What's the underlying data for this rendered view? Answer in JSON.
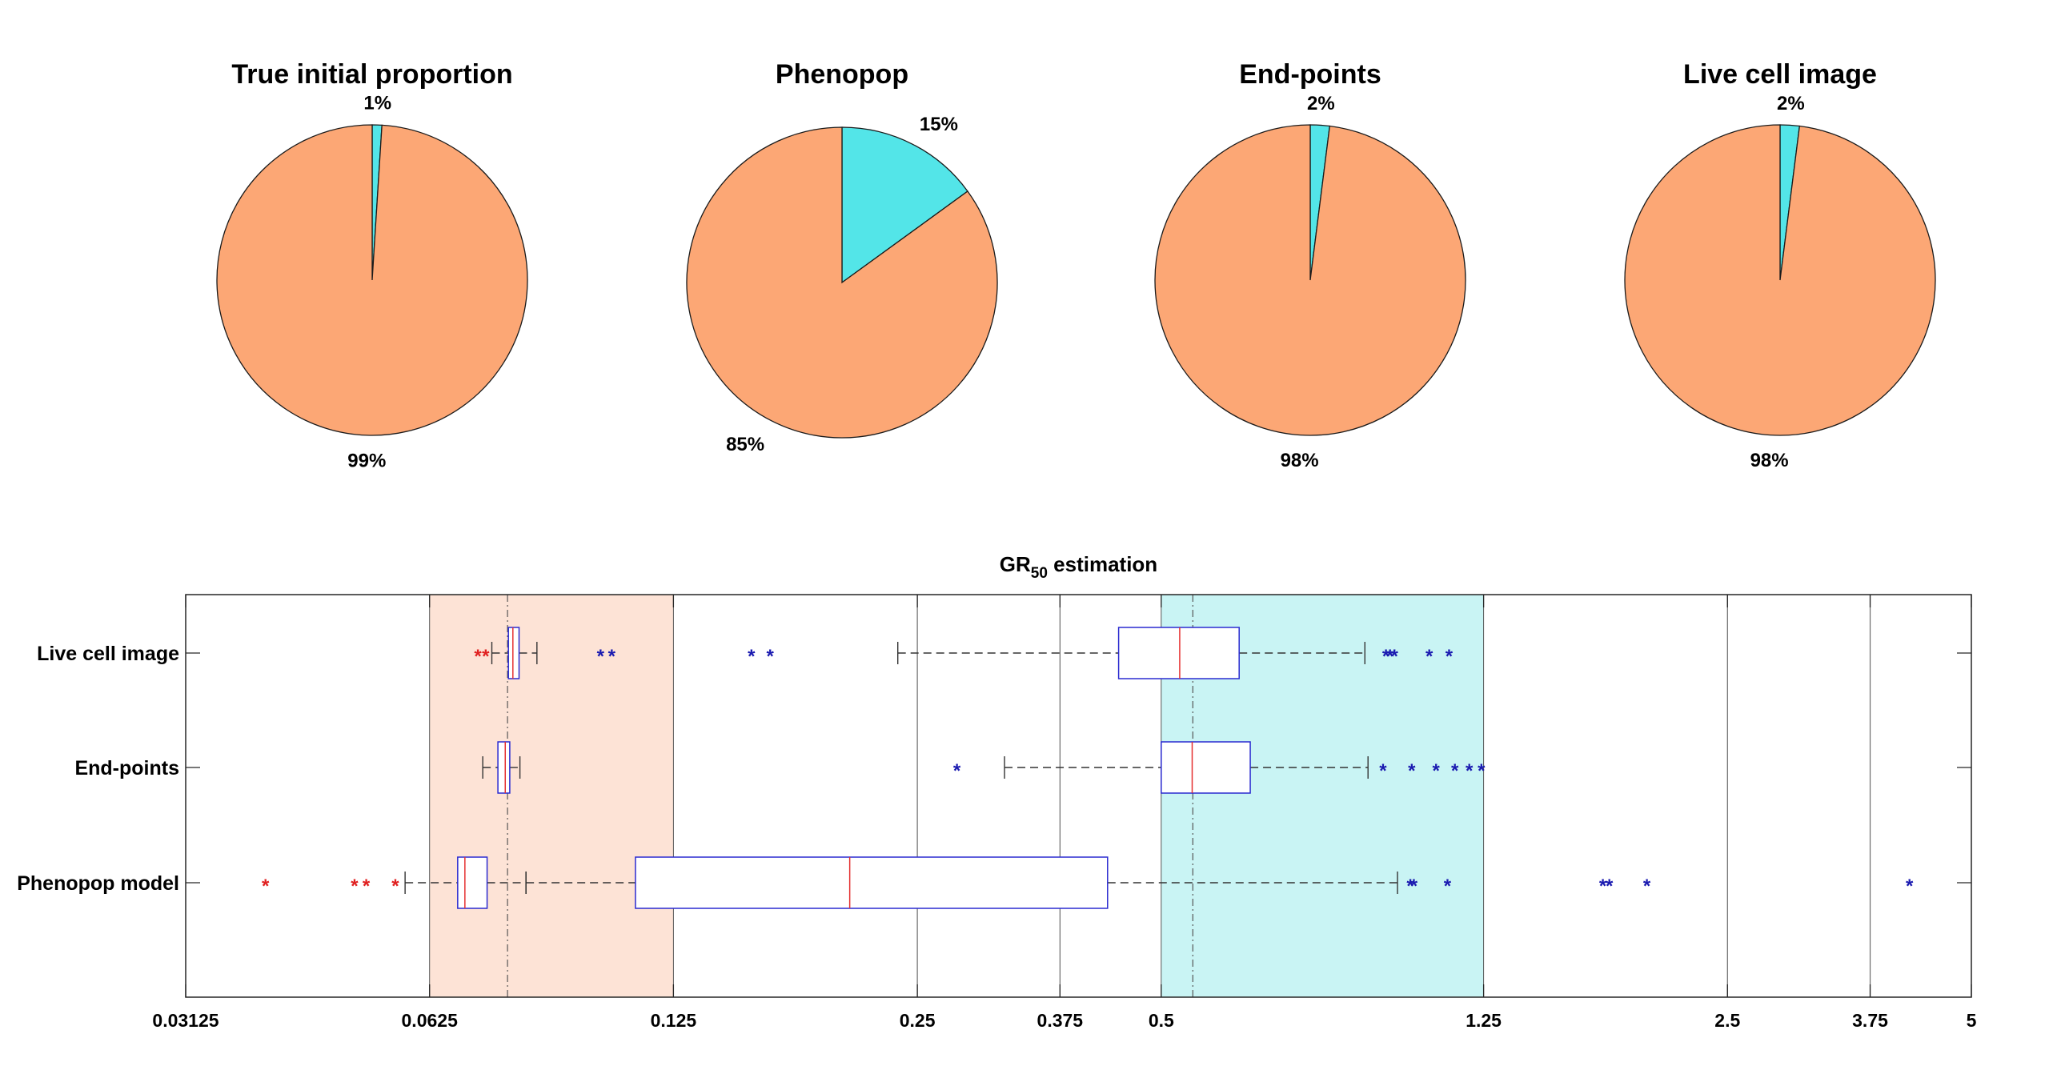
{
  "chart_data": [
    {
      "type": "pie",
      "title": "True initial proportion",
      "slices": [
        {
          "label": "1%",
          "value": 1,
          "color": "#53e5e8"
        },
        {
          "label": "99%",
          "value": 99,
          "color": "#fca775"
        }
      ]
    },
    {
      "type": "pie",
      "title": "Phenopop",
      "slices": [
        {
          "label": "15%",
          "value": 15,
          "color": "#53e5e8"
        },
        {
          "label": "85%",
          "value": 85,
          "color": "#fca775"
        }
      ]
    },
    {
      "type": "pie",
      "title": "End-points",
      "slices": [
        {
          "label": "2%",
          "value": 2,
          "color": "#53e5e8"
        },
        {
          "label": "98%",
          "value": 98,
          "color": "#fca775"
        }
      ]
    },
    {
      "type": "pie",
      "title": "Live cell image",
      "slices": [
        {
          "label": "2%",
          "value": 2,
          "color": "#53e5e8"
        },
        {
          "label": "98%",
          "value": 98,
          "color": "#fca775"
        }
      ]
    },
    {
      "type": "boxplot",
      "orientation": "horizontal",
      "title_main": "GR",
      "title_sub": "50",
      "title_rest": " estimation",
      "xscale": "log",
      "xlim": [
        0.03125,
        5
      ],
      "xticks": [
        0.03125,
        0.0625,
        0.125,
        0.25,
        0.375,
        0.5,
        1.25,
        2.5,
        3.75,
        5
      ],
      "xtick_labels": [
        "0.03125",
        "0.0625",
        "0.125",
        "0.25",
        "0.375",
        "0.5",
        "1.25",
        "2.5",
        "3.75",
        "5"
      ],
      "grid_x": [
        0.25,
        0.375,
        2.5,
        3.75
      ],
      "shaded_regions": [
        {
          "x0": 0.0625,
          "x1": 0.125,
          "color": "#fde3d6"
        },
        {
          "x0": 0.5,
          "x1": 1.25,
          "color": "#c9f4f4"
        }
      ],
      "reference_lines": [
        0.078,
        0.547
      ],
      "categories": [
        "Live cell image",
        "End-points",
        "Phenopop model"
      ],
      "boxes": [
        {
          "category": "Live cell image",
          "groups": [
            {
              "whisker_low": 0.0746,
              "q1": 0.0782,
              "median": 0.0792,
              "q3": 0.0806,
              "whisker_high": 0.0848,
              "outliers": [
                {
                  "x": 0.0717,
                  "color": "#e02020"
                },
                {
                  "x": 0.0733,
                  "color": "#e02020"
                },
                {
                  "x": 0.1016,
                  "color": "#1a1ab0"
                },
                {
                  "x": 0.1049,
                  "color": "#1a1ab0"
                }
              ]
            },
            {
              "whisker_low": 0.2365,
              "q1": 0.443,
              "median": 0.527,
              "q3": 0.624,
              "whisker_high": 0.892,
              "outliers": [
                {
                  "x": 0.156,
                  "color": "#1a1ab0"
                },
                {
                  "x": 0.1645,
                  "color": "#1a1ab0"
                },
                {
                  "x": 0.947,
                  "color": "#1a1ab0"
                },
                {
                  "x": 0.958,
                  "color": "#1a1ab0"
                },
                {
                  "x": 0.97,
                  "color": "#1a1ab0"
                },
                {
                  "x": 1.071,
                  "color": "#1a1ab0"
                },
                {
                  "x": 1.133,
                  "color": "#1a1ab0"
                }
              ]
            }
          ]
        },
        {
          "category": "End-points",
          "groups": [
            {
              "whisker_low": 0.0727,
              "q1": 0.0759,
              "median": 0.0775,
              "q3": 0.0785,
              "whisker_high": 0.0808,
              "outliers": []
            },
            {
              "whisker_low": 0.3203,
              "q1": 0.5,
              "median": 0.546,
              "q3": 0.644,
              "whisker_high": 0.9,
              "outliers": [
                {
                  "x": 0.2798,
                  "color": "#1a1ab0"
                },
                {
                  "x": 0.9392,
                  "color": "#1a1ab0"
                },
                {
                  "x": 1.019,
                  "color": "#1a1ab0"
                },
                {
                  "x": 1.092,
                  "color": "#1a1ab0"
                },
                {
                  "x": 1.152,
                  "color": "#1a1ab0"
                },
                {
                  "x": 1.2,
                  "color": "#1a1ab0"
                },
                {
                  "x": 1.242,
                  "color": "#1a1ab0"
                }
              ]
            }
          ]
        },
        {
          "category": "Phenopop model",
          "groups": [
            {
              "whisker_low": 0.0583,
              "q1": 0.0677,
              "median": 0.0691,
              "q3": 0.0736,
              "whisker_high": 0.0822,
              "outliers": [
                {
                  "x": 0.0392,
                  "color": "#e02020"
                },
                {
                  "x": 0.0505,
                  "color": "#e02020"
                },
                {
                  "x": 0.0522,
                  "color": "#e02020"
                },
                {
                  "x": 0.0567,
                  "color": "#e02020"
                }
              ]
            },
            {
              "whisker_low": 0.0822,
              "q1": 0.1122,
              "median": 0.2063,
              "q3": 0.4293,
              "whisker_high": 0.9786,
              "outliers": [
                {
                  "x": 1.015,
                  "color": "#1a1ab0"
                },
                {
                  "x": 1.025,
                  "color": "#1a1ab0"
                },
                {
                  "x": 1.128,
                  "color": "#1a1ab0"
                },
                {
                  "x": 1.754,
                  "color": "#1a1ab0"
                },
                {
                  "x": 1.787,
                  "color": "#1a1ab0"
                },
                {
                  "x": 1.988,
                  "color": "#1a1ab0"
                },
                {
                  "x": 4.193,
                  "color": "#1a1ab0"
                }
              ]
            }
          ]
        }
      ]
    }
  ]
}
